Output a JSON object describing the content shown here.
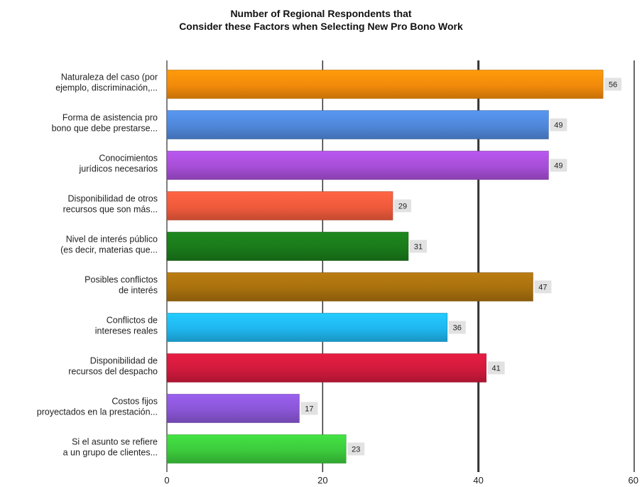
{
  "chart_data": {
    "type": "bar",
    "orientation": "horizontal",
    "title": "Number of Regional Respondents that\nConsider these Factors when Selecting New Pro Bono Work",
    "categories": [
      [
        "Naturaleza del caso (por",
        "ejemplo, discriminación,..."
      ],
      [
        "Forma de asistencia pro",
        "bono que debe prestarse..."
      ],
      [
        "Conocimientos",
        "jurídicos necesarios"
      ],
      [
        "Disponibilidad de otros",
        "recursos que son más..."
      ],
      [
        "Nivel de interés público",
        "(es decir, materias que..."
      ],
      [
        "Posibles conflictos",
        "de interés"
      ],
      [
        "Conflictos de",
        "intereses reales"
      ],
      [
        "Disponibilidad de",
        "recursos del despacho"
      ],
      [
        "Costos fijos",
        "proyectados en la prestación..."
      ],
      [
        "Si el asunto se refiere",
        "a un grupo de clientes..."
      ]
    ],
    "values": [
      56,
      49,
      49,
      29,
      31,
      47,
      36,
      41,
      17,
      23
    ],
    "colors": [
      "#f28a0a",
      "#4f87d9",
      "#a64ed6",
      "#ef5a3c",
      "#1a7a1a",
      "#a8700e",
      "#1fb6ee",
      "#d01a3c",
      "#8a56d6",
      "#3ccb3c"
    ],
    "xlim": [
      0,
      60
    ],
    "xticks": [
      0,
      20,
      40,
      60
    ],
    "xlabel": "",
    "ylabel": "",
    "grid": true,
    "legend": "none"
  }
}
